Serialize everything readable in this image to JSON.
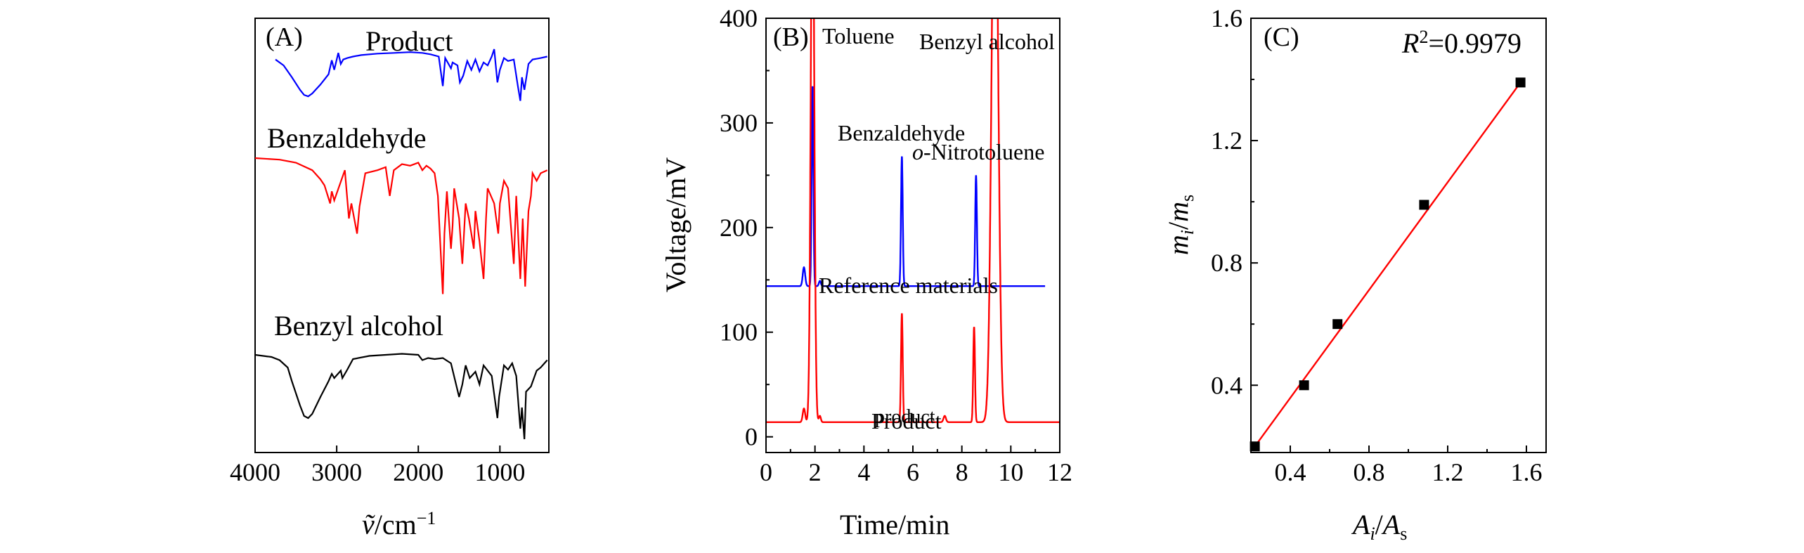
{
  "colors": {
    "blue": "#0000ff",
    "red": "#ff0000",
    "black": "#000000",
    "marker": "#000000"
  },
  "chart_data": [
    {
      "panel": "(A)",
      "type": "line",
      "xlim": [
        4000,
        400
      ],
      "x_ticks": [
        4000,
        3000,
        2000,
        1000
      ],
      "xlabel": "ṽ/cm⁻¹",
      "series": [
        {
          "name": "Product",
          "color": "#0000ff",
          "offset": 0.3,
          "points": [
            [
              3750,
              0.86
            ],
            [
              3650,
              0.78
            ],
            [
              3550,
              0.62
            ],
            [
              3450,
              0.45
            ],
            [
              3400,
              0.38
            ],
            [
              3350,
              0.36
            ],
            [
              3300,
              0.4
            ],
            [
              3200,
              0.52
            ],
            [
              3100,
              0.66
            ],
            [
              3060,
              0.85
            ],
            [
              3030,
              0.72
            ],
            [
              2980,
              0.95
            ],
            [
              2950,
              0.8
            ],
            [
              2920,
              0.86
            ],
            [
              2870,
              0.88
            ],
            [
              2800,
              0.9
            ],
            [
              2700,
              0.92
            ],
            [
              2500,
              0.94
            ],
            [
              2300,
              0.95
            ],
            [
              2100,
              0.96
            ],
            [
              1950,
              0.95
            ],
            [
              1850,
              0.93
            ],
            [
              1750,
              0.9
            ],
            [
              1700,
              0.5
            ],
            [
              1670,
              0.88
            ],
            [
              1600,
              0.74
            ],
            [
              1580,
              0.82
            ],
            [
              1520,
              0.78
            ],
            [
              1490,
              0.55
            ],
            [
              1450,
              0.64
            ],
            [
              1400,
              0.84
            ],
            [
              1350,
              0.72
            ],
            [
              1300,
              0.86
            ],
            [
              1250,
              0.7
            ],
            [
              1200,
              0.82
            ],
            [
              1150,
              0.78
            ],
            [
              1100,
              0.9
            ],
            [
              1070,
              1.0
            ],
            [
              1030,
              0.55
            ],
            [
              1000,
              0.72
            ],
            [
              950,
              0.88
            ],
            [
              900,
              0.84
            ],
            [
              830,
              0.86
            ],
            [
              780,
              0.5
            ],
            [
              750,
              0.3
            ],
            [
              730,
              0.62
            ],
            [
              700,
              0.45
            ],
            [
              650,
              0.8
            ],
            [
              600,
              0.86
            ],
            [
              500,
              0.88
            ],
            [
              420,
              0.9
            ]
          ]
        },
        {
          "name": "Benzaldehyde",
          "color": "#ff0000",
          "offset": 0.0,
          "points": [
            [
              4000,
              1.0
            ],
            [
              3700,
              0.99
            ],
            [
              3500,
              0.97
            ],
            [
              3300,
              0.92
            ],
            [
              3200,
              0.86
            ],
            [
              3150,
              0.82
            ],
            [
              3080,
              0.7
            ],
            [
              3060,
              0.78
            ],
            [
              3030,
              0.72
            ],
            [
              2900,
              0.92
            ],
            [
              2850,
              0.6
            ],
            [
              2820,
              0.7
            ],
            [
              2750,
              0.5
            ],
            [
              2720,
              0.68
            ],
            [
              2650,
              0.9
            ],
            [
              2500,
              0.92
            ],
            [
              2400,
              0.94
            ],
            [
              2350,
              0.75
            ],
            [
              2300,
              0.92
            ],
            [
              2200,
              0.96
            ],
            [
              2100,
              0.95
            ],
            [
              2000,
              0.97
            ],
            [
              1950,
              0.92
            ],
            [
              1900,
              0.95
            ],
            [
              1850,
              0.93
            ],
            [
              1800,
              0.9
            ],
            [
              1760,
              0.75
            ],
            [
              1700,
              0.1
            ],
            [
              1680,
              0.5
            ],
            [
              1650,
              0.78
            ],
            [
              1600,
              0.4
            ],
            [
              1580,
              0.55
            ],
            [
              1560,
              0.8
            ],
            [
              1500,
              0.6
            ],
            [
              1460,
              0.3
            ],
            [
              1420,
              0.7
            ],
            [
              1380,
              0.6
            ],
            [
              1320,
              0.4
            ],
            [
              1300,
              0.65
            ],
            [
              1250,
              0.45
            ],
            [
              1200,
              0.2
            ],
            [
              1170,
              0.6
            ],
            [
              1150,
              0.8
            ],
            [
              1070,
              0.7
            ],
            [
              1020,
              0.5
            ],
            [
              1000,
              0.7
            ],
            [
              950,
              0.85
            ],
            [
              900,
              0.8
            ],
            [
              830,
              0.3
            ],
            [
              800,
              0.75
            ],
            [
              750,
              0.2
            ],
            [
              720,
              0.6
            ],
            [
              690,
              0.15
            ],
            [
              650,
              0.65
            ],
            [
              620,
              0.75
            ],
            [
              600,
              0.9
            ],
            [
              550,
              0.85
            ],
            [
              500,
              0.9
            ],
            [
              420,
              0.92
            ]
          ]
        },
        {
          "name": "Benzyl alcohol",
          "color": "#000000",
          "offset": -0.3,
          "points": [
            [
              4000,
              0.9
            ],
            [
              3800,
              0.88
            ],
            [
              3700,
              0.85
            ],
            [
              3600,
              0.78
            ],
            [
              3550,
              0.65
            ],
            [
              3450,
              0.42
            ],
            [
              3400,
              0.32
            ],
            [
              3350,
              0.3
            ],
            [
              3300,
              0.34
            ],
            [
              3200,
              0.5
            ],
            [
              3100,
              0.65
            ],
            [
              3060,
              0.72
            ],
            [
              3030,
              0.68
            ],
            [
              2950,
              0.75
            ],
            [
              2930,
              0.68
            ],
            [
              2870,
              0.76
            ],
            [
              2800,
              0.86
            ],
            [
              2600,
              0.89
            ],
            [
              2400,
              0.9
            ],
            [
              2200,
              0.91
            ],
            [
              2000,
              0.9
            ],
            [
              1950,
              0.85
            ],
            [
              1880,
              0.87
            ],
            [
              1800,
              0.86
            ],
            [
              1700,
              0.87
            ],
            [
              1600,
              0.82
            ],
            [
              1500,
              0.5
            ],
            [
              1460,
              0.62
            ],
            [
              1420,
              0.8
            ],
            [
              1370,
              0.68
            ],
            [
              1300,
              0.74
            ],
            [
              1250,
              0.62
            ],
            [
              1200,
              0.8
            ],
            [
              1100,
              0.7
            ],
            [
              1030,
              0.3
            ],
            [
              1010,
              0.5
            ],
            [
              950,
              0.8
            ],
            [
              900,
              0.76
            ],
            [
              850,
              0.82
            ],
            [
              800,
              0.7
            ],
            [
              750,
              0.2
            ],
            [
              730,
              0.4
            ],
            [
              700,
              0.1
            ],
            [
              680,
              0.55
            ],
            [
              620,
              0.6
            ],
            [
              550,
              0.75
            ],
            [
              500,
              0.78
            ],
            [
              420,
              0.85
            ]
          ]
        }
      ],
      "labels": [
        "(A)",
        "Product",
        "Benzaldehyde",
        "Benzyl alcohol"
      ]
    },
    {
      "panel": "(B)",
      "type": "line",
      "xlim": [
        0,
        12
      ],
      "ylim": [
        -15,
        400
      ],
      "x_ticks": [
        0,
        2,
        4,
        6,
        8,
        10,
        12
      ],
      "y_ticks": [
        0,
        100,
        200,
        300,
        400
      ],
      "xlabel": "Time/min",
      "ylabel": "Voltage/mV",
      "series": [
        {
          "name": "Reference materials",
          "color": "#0000ff",
          "baseline": 144,
          "peaks": [
            [
              1.55,
              162,
              0.05
            ],
            [
              1.9,
              335,
              0.035
            ],
            [
              2.2,
              149,
              0.04
            ],
            [
              5.55,
              268,
              0.035
            ],
            [
              8.58,
              250,
              0.035
            ]
          ],
          "x_range": [
            0,
            11.4
          ]
        },
        {
          "name": "Product",
          "color": "#ff0000",
          "baseline": 14,
          "peaks": [
            [
              1.55,
              27,
              0.05
            ],
            [
              1.9,
              560,
              0.07
            ],
            [
              2.2,
              20,
              0.04
            ],
            [
              5.55,
              118,
              0.035
            ],
            [
              7.3,
              20,
              0.05
            ],
            [
              8.5,
              105,
              0.035
            ],
            [
              9.35,
              600,
              0.13
            ]
          ],
          "x_range": [
            0,
            12
          ]
        }
      ],
      "labels": [
        "(B)",
        "Toluene",
        "Benzyl alcohol",
        "Benzaldehyde",
        "o-Nitrotoluene",
        "Reference materials",
        "product",
        "Product"
      ]
    },
    {
      "panel": "(C)",
      "type": "scatter",
      "xlim": [
        0.2,
        1.7
      ],
      "ylim": [
        0.18,
        1.6
      ],
      "x_ticks": [
        0.4,
        0.8,
        1.2,
        1.6
      ],
      "y_ticks": [
        0.4,
        0.8,
        1.2,
        1.6
      ],
      "xlabel": "Ai/As",
      "ylabel": "mi/ms",
      "x": [
        0.22,
        0.47,
        0.64,
        1.08,
        1.57
      ],
      "y": [
        0.2,
        0.4,
        0.6,
        0.99,
        1.39
      ],
      "fit": [
        [
          0.22,
          0.2
        ],
        [
          1.57,
          1.39
        ]
      ],
      "annotation": "R²=0.9979",
      "labels": [
        "(C)"
      ]
    }
  ],
  "text": {
    "panelA": {
      "letter": "(A)",
      "product": "Product",
      "benzaldehyde": "Benzaldehyde",
      "benzyl": "Benzyl alcohol",
      "xlabel_nu": "ṽ",
      "xlabel_unit": "/cm",
      "xlabel_sup": "−1"
    },
    "panelB": {
      "letter": "(B)",
      "toluene": "Toluene",
      "benzyl": "Benzyl alcohol",
      "benzaldehyde": "Benzaldehyde",
      "nitro_prefix": "o",
      "nitro_rest": "-Nitrotoluene",
      "reference": "Reference materials",
      "product_small": "product",
      "product": "Product",
      "xlabel": "Time/min",
      "ylabel": "Voltage/mV"
    },
    "panelC": {
      "letter": "(C)",
      "r2_r": "R",
      "r2_sup": "2",
      "r2_val": "=0.9979",
      "x_A": "A",
      "x_i": "i",
      "x_slash": "/",
      "x_As": "A",
      "x_s": "s",
      "y_m": "m",
      "y_i": "i",
      "y_slash": "/",
      "y_ms": "m",
      "y_s": "s"
    }
  }
}
